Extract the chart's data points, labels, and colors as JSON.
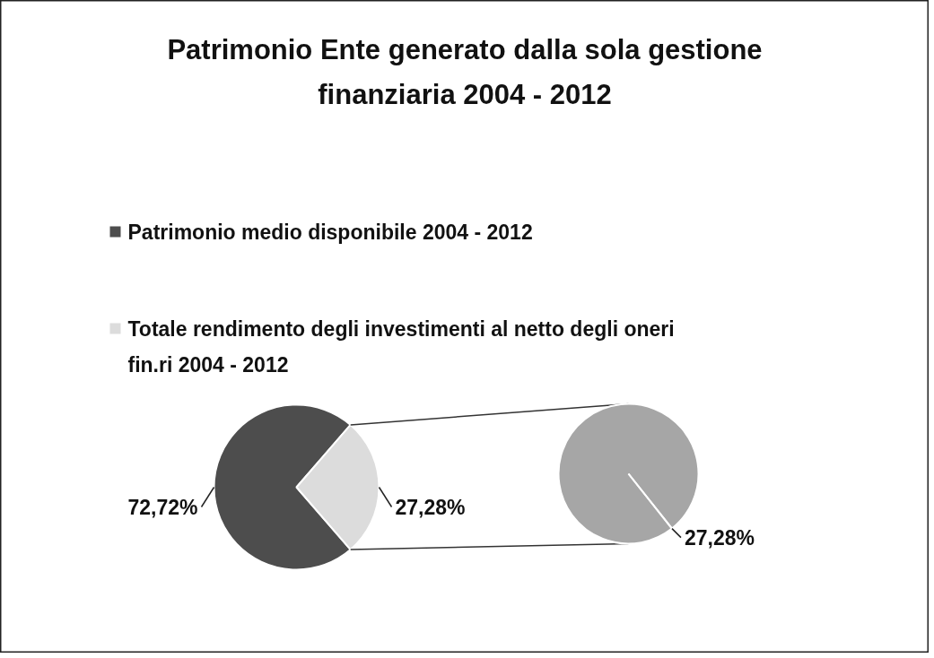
{
  "chart_data": [
    {
      "type": "pie",
      "title": "Patrimonio Ente generato dalla sola gestione finanziaria 2004 - 2012",
      "categories": [
        "Patrimonio medio disponibile 2004 - 2012",
        "Totale rendimento degli investimenti al netto degli oneri fin.ri 2004 - 2012"
      ],
      "values": [
        72.72,
        27.28
      ],
      "colors": [
        "#4d4d4d",
        "#dcdcdc"
      ],
      "value_labels": [
        "72,72%",
        "27,28%"
      ],
      "legend": "top"
    },
    {
      "type": "pie",
      "categories": [
        null
      ],
      "values": [
        27.28
      ],
      "colors": [
        "#a6a6a6"
      ],
      "value_labels": [
        "27,28%"
      ]
    }
  ]
}
